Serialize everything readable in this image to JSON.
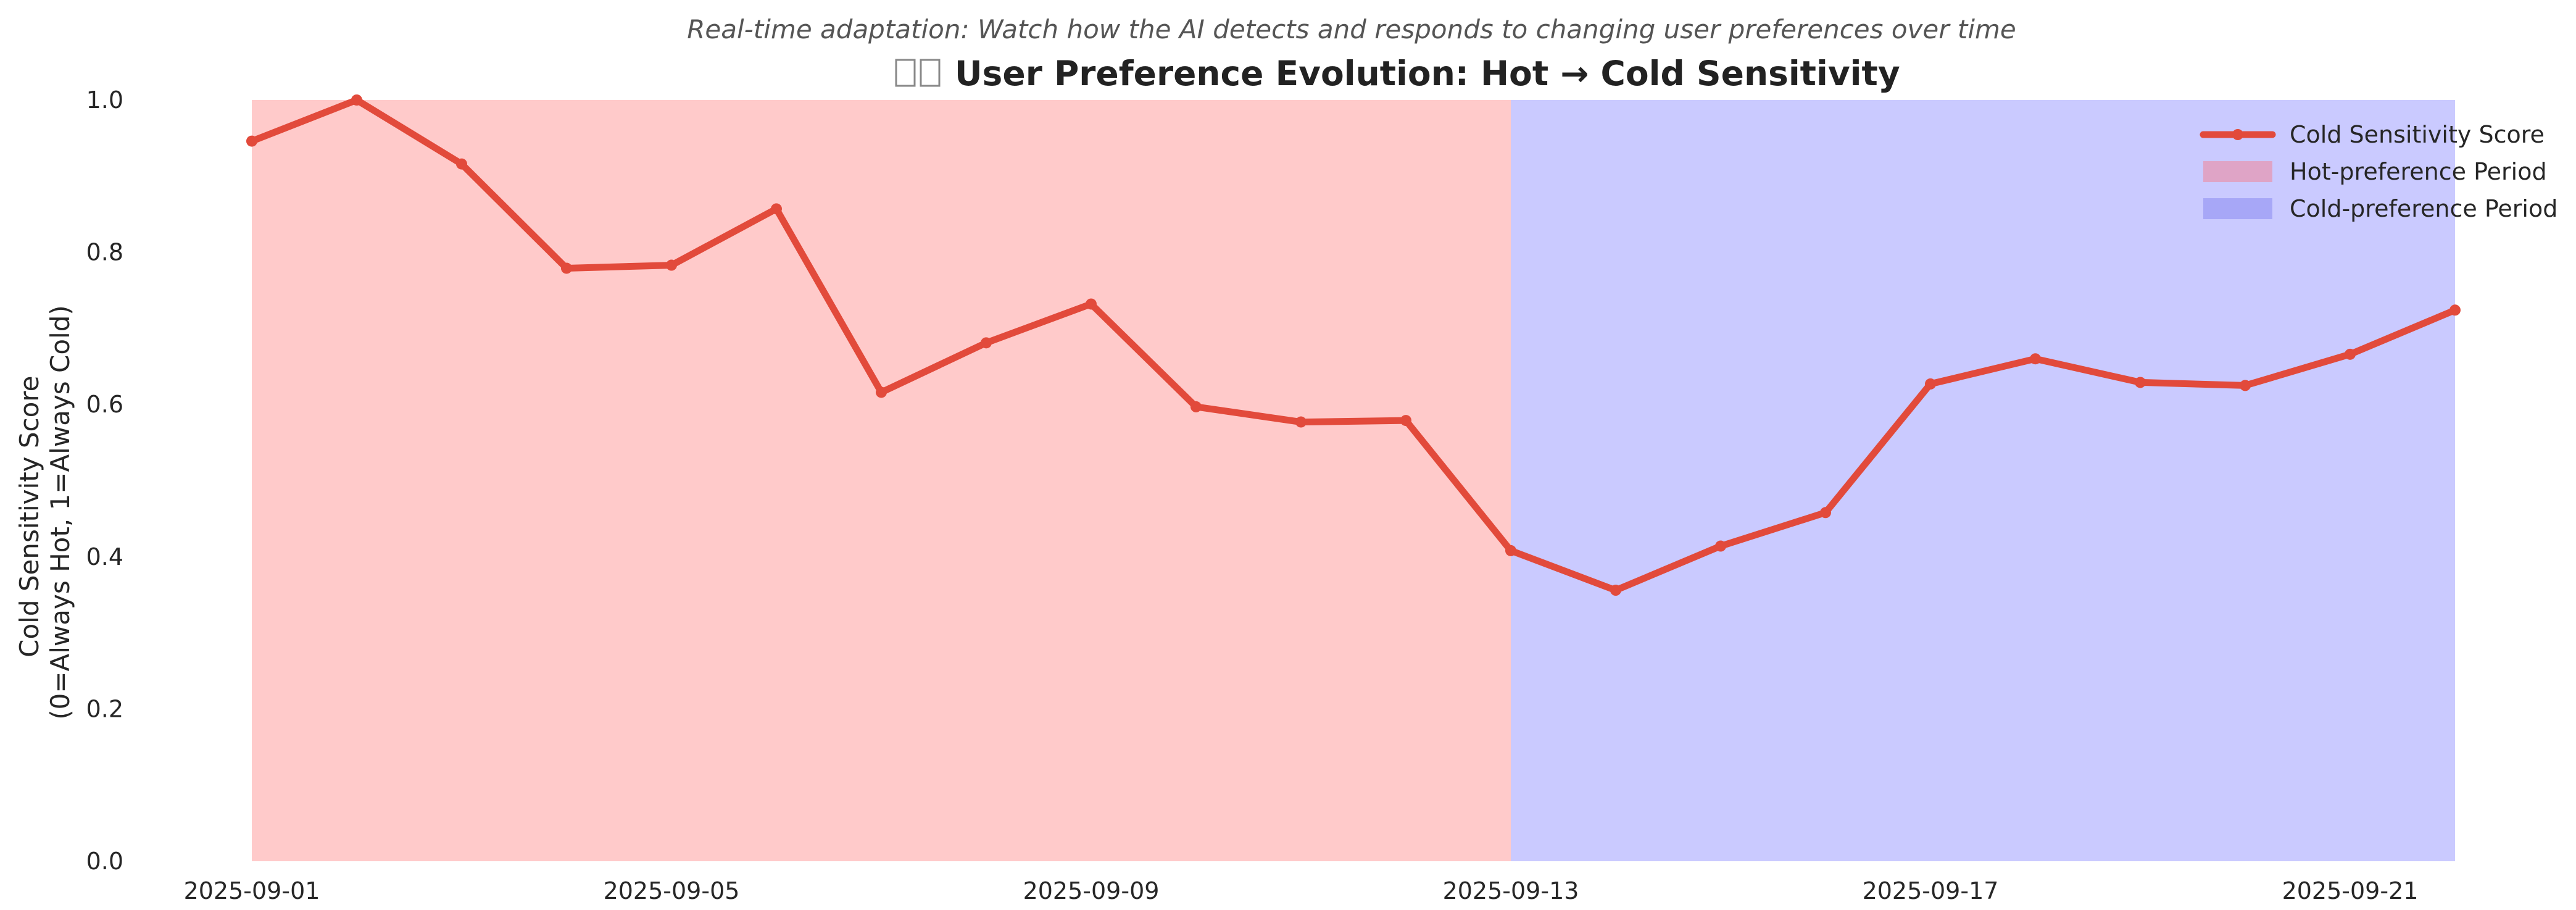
{
  "chart_data": {
    "type": "line",
    "subtitle": "Real-time adaptation: Watch how the AI detects and responds to changing user preferences over time",
    "title": "User Preference Evolution: Hot → Cold Sensitivity",
    "ylabel_line1": "Cold Sensitivity Score",
    "ylabel_line2": "(0=Always Hot, 1=Always Cold)",
    "xlabel": "",
    "ylim": [
      0,
      1
    ],
    "yticks": [
      "0.0",
      "0.2",
      "0.4",
      "0.6",
      "0.8",
      "1.0"
    ],
    "xlim": [
      "2025-09-01",
      "2025-09-22"
    ],
    "xticks": [
      "2025-09-01",
      "2025-09-05",
      "2025-09-09",
      "2025-09-13",
      "2025-09-17",
      "2025-09-21"
    ],
    "grid": false,
    "legend_position": "top-right",
    "series": [
      {
        "name": "Cold Sensitivity Score",
        "color": "#e24a3b",
        "x": [
          "2025-09-01",
          "2025-09-02",
          "2025-09-03",
          "2025-09-04",
          "2025-09-05",
          "2025-09-06",
          "2025-09-07",
          "2025-09-08",
          "2025-09-09",
          "2025-09-10",
          "2025-09-11",
          "2025-09-12",
          "2025-09-13",
          "2025-09-14",
          "2025-09-15",
          "2025-09-16",
          "2025-09-17",
          "2025-09-18",
          "2025-09-19",
          "2025-09-20",
          "2025-09-21",
          "2025-09-22"
        ],
        "values": [
          0.946,
          1.0,
          0.916,
          0.779,
          0.783,
          0.857,
          0.616,
          0.681,
          0.732,
          0.597,
          0.577,
          0.579,
          0.408,
          0.356,
          0.414,
          0.458,
          0.627,
          0.66,
          0.629,
          0.625,
          0.666,
          0.724
        ]
      }
    ],
    "shaded_periods": [
      {
        "name": "Hot-preference Period",
        "start": "2025-09-01",
        "end": "2025-09-13",
        "color": "#ffb3b3",
        "legend_color": "#dfa4c6"
      },
      {
        "name": "Cold-preference Period",
        "start": "2025-09-13",
        "end": "2025-09-22",
        "color": "#b3b3ff",
        "legend_color": "#a7a7f7"
      }
    ]
  }
}
